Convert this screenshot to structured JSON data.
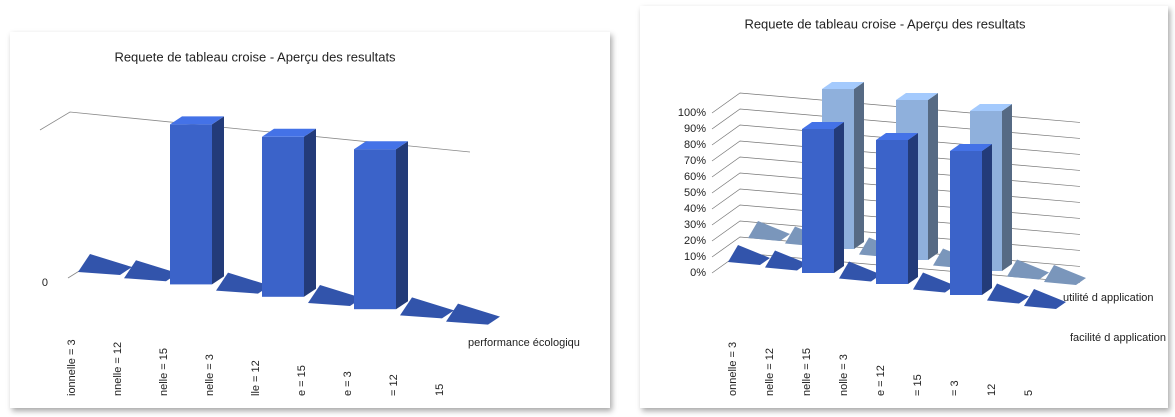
{
  "chart_data": [
    {
      "type": "bar",
      "title": "Requete de tableau croise - Aperçu des resultats",
      "categories": [
        "ionnelle = 3",
        "nnelle = 12",
        "nelle = 15",
        "nelle = 3",
        "lle = 12",
        "e = 15",
        "e = 3",
        "= 12",
        "15"
      ],
      "series": [
        {
          "name": "performance écologiqu",
          "color": "#3b63c9",
          "values": [
            0,
            0,
            1,
            0,
            1,
            0,
            1,
            0,
            0
          ]
        }
      ],
      "ylim": [
        0,
        1
      ],
      "yticks": [
        0
      ]
    },
    {
      "type": "bar",
      "title": "Requete de tableau croise - Aperçu des resultats",
      "categories": [
        "onnelle = 3",
        "nelle = 12",
        "nelle = 15",
        "nolle = 3",
        "e = 12",
        "= 15",
        "= 3",
        "12",
        "5"
      ],
      "series": [
        {
          "name": "facilité d application",
          "color": "#3b63c9",
          "values": [
            0,
            0,
            90,
            0,
            90,
            0,
            90,
            0,
            0
          ]
        },
        {
          "name": "utilité d application",
          "color": "#8fb0dc",
          "values": [
            0,
            0,
            100,
            0,
            100,
            0,
            100,
            0,
            0
          ]
        }
      ],
      "ylim": [
        0,
        100
      ],
      "yticks": [
        {
          "value": 0,
          "label": "0%"
        },
        {
          "value": 10,
          "label": "10%"
        },
        {
          "value": 20,
          "label": "20%"
        },
        {
          "value": 30,
          "label": "30%"
        },
        {
          "value": 40,
          "label": "40%"
        },
        {
          "value": 50,
          "label": "50%"
        },
        {
          "value": 60,
          "label": "60%"
        },
        {
          "value": 70,
          "label": "70%"
        },
        {
          "value": 80,
          "label": "80%"
        },
        {
          "value": 90,
          "label": "90%"
        },
        {
          "value": 100,
          "label": "100%"
        }
      ],
      "grid": true
    }
  ]
}
